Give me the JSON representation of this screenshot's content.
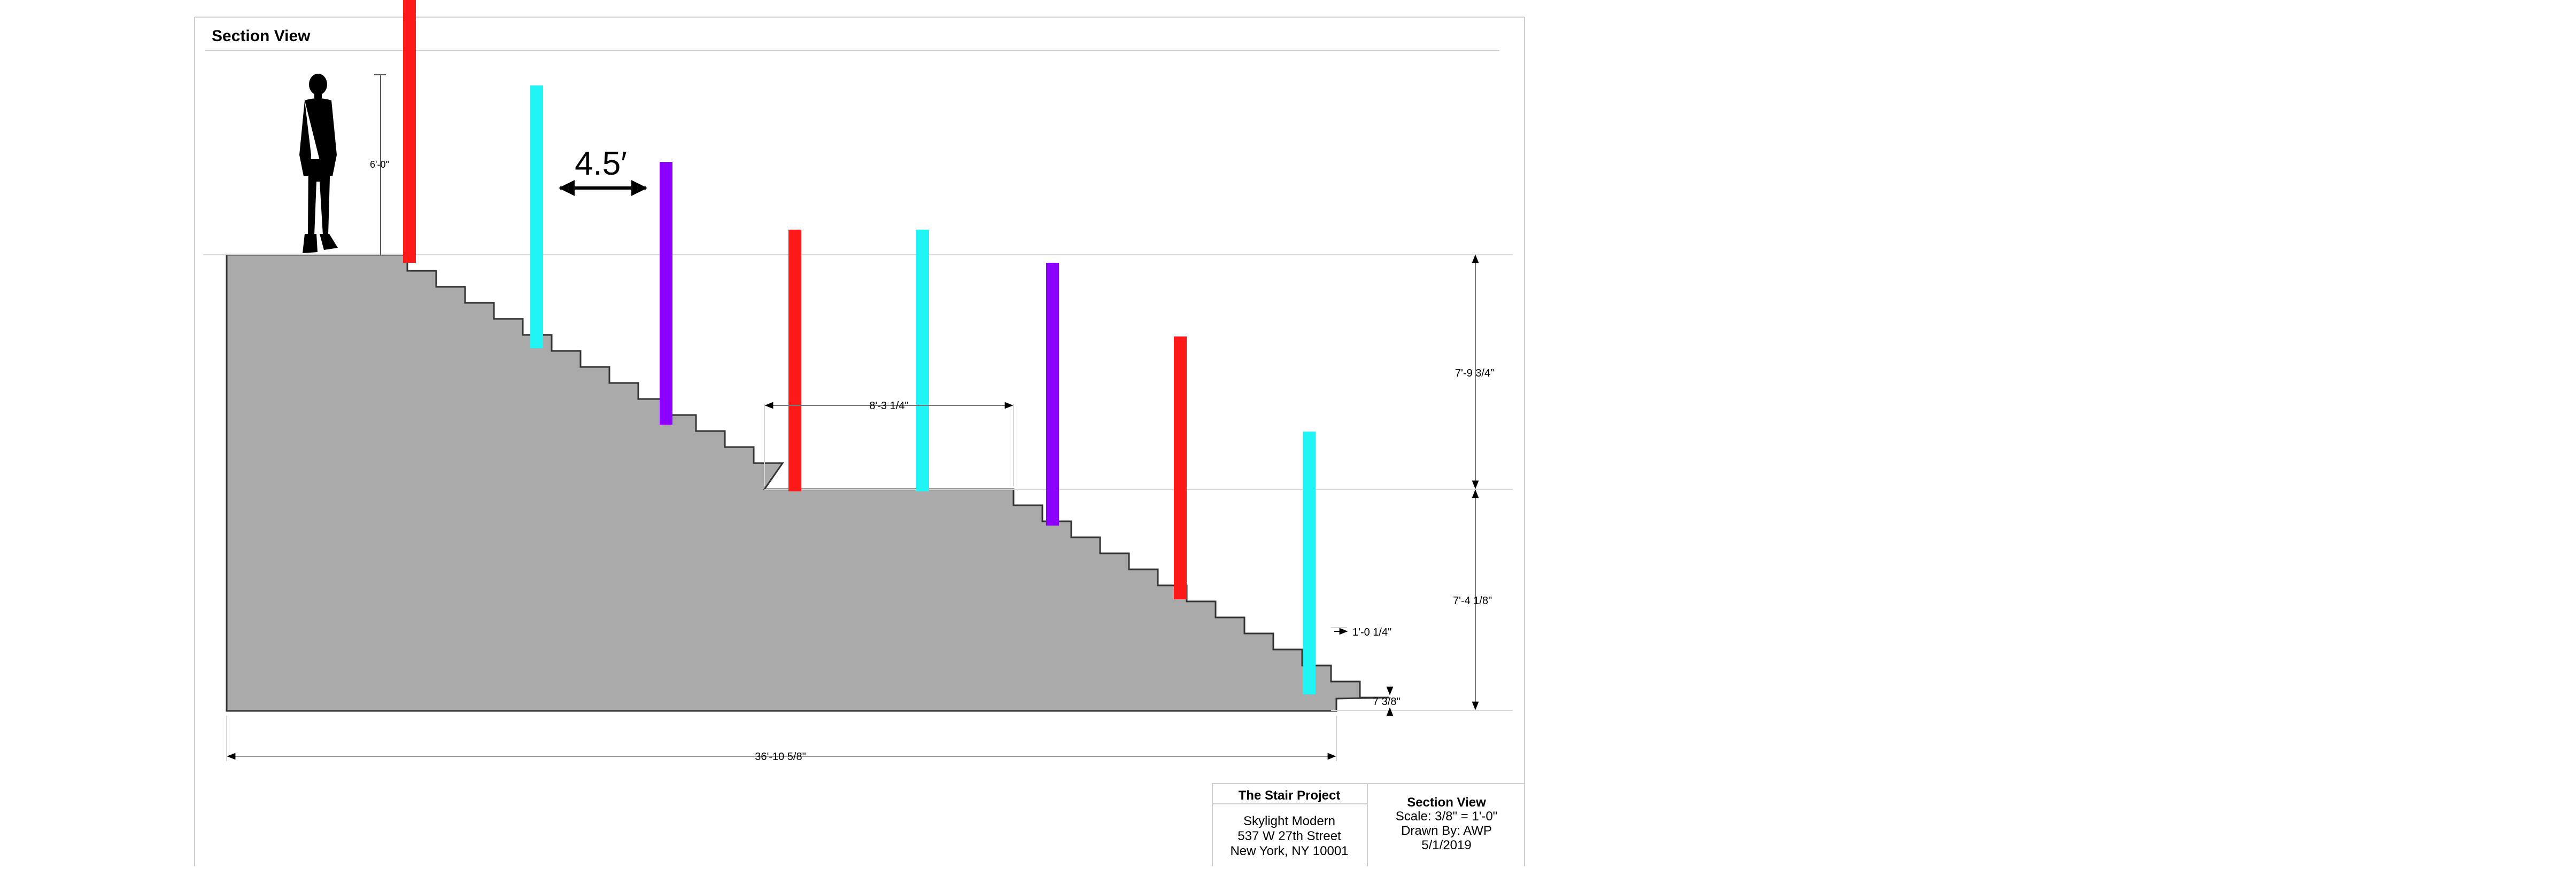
{
  "sheet": {
    "title": "Section View"
  },
  "dimensions": {
    "person_height": "6'-0\"",
    "post_spacing": "4.5′",
    "landing_width": "8'-3 1/4\"",
    "upper_rise": "7'-9 3/4\"",
    "lower_rise": "7'-4 1/8\"",
    "bottom_step_run": "1'-0 1/4\"",
    "bottom_step_rise": "7 3/8\"",
    "overall_length": "36'-10 5/8\""
  },
  "title_block": {
    "project_name": "The Stair Project",
    "client": "Skylight Modern",
    "address_line1": "537 W 27th Street",
    "address_line2": "New York, NY 10001",
    "view_title": "Section View",
    "scale": "Scale: 3/8\" = 1'-0\"",
    "drawn_by": "Drawn By: AWP",
    "date": "5/1/2019"
  },
  "colors": {
    "red": "#ff1a1a",
    "cyan": "#1ff3f3",
    "violet": "#8b00ff",
    "stair_fill": "#aaaaaa"
  },
  "posts": [
    {
      "color": "red"
    },
    {
      "color": "cyan"
    },
    {
      "color": "violet"
    },
    {
      "color": "red"
    },
    {
      "color": "cyan"
    },
    {
      "color": "violet"
    },
    {
      "color": "red"
    },
    {
      "color": "cyan"
    }
  ]
}
